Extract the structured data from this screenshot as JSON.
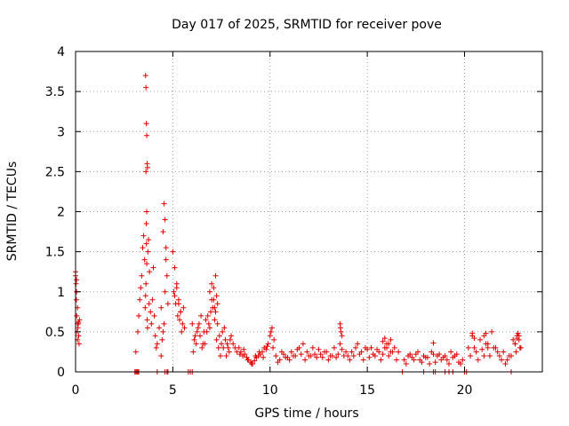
{
  "chart_data": {
    "type": "scatter",
    "title": "Day 017 of 2025, SRMTID for receiver pove",
    "xlabel": "GPS time / hours",
    "ylabel": "SRMTID / TECUs",
    "xlim": [
      0,
      24
    ],
    "ylim": [
      0,
      4
    ],
    "xticks": [
      0,
      5,
      10,
      15,
      20
    ],
    "yticks": [
      0,
      0.5,
      1,
      1.5,
      2,
      2.5,
      3,
      3.5,
      4
    ],
    "xtick_labels": [
      "0",
      "5",
      "10",
      "15",
      "20"
    ],
    "ytick_labels": [
      "0",
      "0.5",
      "1",
      "1.5",
      "2",
      "2.5",
      "3",
      "3.5",
      "4"
    ],
    "grid": true,
    "marker": "+",
    "color": "#dd0000",
    "series": [
      {
        "name": "SRMTID",
        "x": [
          0.0,
          0.02,
          0.04,
          0.06,
          0.08,
          0.1,
          0.12,
          0.14,
          0.16,
          0.18,
          0.0,
          0.05,
          0.1,
          0.15,
          0.05,
          0.1,
          0.2,
          3.1,
          3.2,
          3.25,
          3.3,
          3.35,
          3.4,
          3.45,
          3.5,
          3.55,
          3.58,
          3.6,
          3.62,
          3.64,
          3.66,
          3.68,
          3.7,
          3.72,
          3.75,
          3.78,
          3.8,
          3.85,
          3.9,
          3.95,
          4.0,
          4.05,
          4.1,
          4.15,
          4.2,
          4.3,
          4.4,
          4.5,
          4.55,
          4.6,
          4.65,
          4.7,
          4.75,
          3.6,
          3.62,
          3.64,
          3.66,
          3.68,
          3.7,
          3.66,
          3.64,
          3.62,
          4.4,
          4.45,
          4.5,
          4.55,
          4.6,
          4.65,
          5.0,
          5.1,
          5.2,
          5.3,
          5.4,
          5.5,
          5.6,
          5.05,
          5.15,
          5.25,
          5.35,
          5.45,
          5.55,
          5.1,
          5.2,
          5.3,
          5.4,
          6.0,
          6.1,
          6.2,
          6.3,
          6.4,
          6.5,
          6.6,
          6.7,
          6.8,
          6.9,
          7.0,
          7.1,
          7.2,
          7.3,
          7.4,
          7.5,
          7.6,
          7.7,
          7.8,
          7.9,
          8.0,
          8.1,
          8.2,
          8.3,
          6.05,
          6.25,
          6.45,
          6.65,
          6.85,
          7.05,
          7.25,
          7.45,
          7.65,
          7.85,
          6.15,
          6.35,
          6.55,
          6.75,
          6.95,
          7.15,
          7.35,
          7.55,
          7.75,
          7.95,
          6.9,
          7.0,
          7.1,
          7.2,
          7.3,
          7.15,
          7.25,
          8.4,
          8.5,
          8.6,
          8.7,
          8.8,
          8.9,
          9.0,
          9.1,
          9.2,
          9.3,
          9.4,
          9.5,
          9.6,
          9.7,
          9.8,
          9.9,
          10.0,
          10.1,
          10.2,
          8.45,
          8.65,
          8.85,
          9.05,
          9.25,
          9.45,
          9.65,
          9.85,
          10.05,
          10.15,
          10.3,
          10.5,
          10.7,
          10.9,
          11.1,
          11.3,
          11.5,
          11.7,
          11.9,
          12.1,
          12.3,
          12.5,
          12.7,
          12.9,
          13.1,
          13.3,
          13.5,
          13.7,
          13.9,
          10.4,
          10.6,
          10.8,
          11.0,
          11.2,
          11.4,
          11.6,
          11.8,
          12.0,
          12.2,
          12.4,
          12.6,
          12.8,
          13.0,
          13.2,
          13.4,
          13.6,
          13.8,
          13.6,
          13.65,
          13.7,
          13.62,
          14.0,
          14.2,
          14.4,
          14.6,
          14.8,
          15.0,
          15.2,
          15.4,
          15.6,
          15.8,
          16.0,
          16.2,
          16.4,
          16.6,
          14.1,
          14.3,
          14.5,
          14.7,
          14.9,
          15.1,
          15.3,
          15.5,
          15.7,
          15.9,
          16.1,
          16.3,
          16.5,
          15.8,
          15.9,
          16.0,
          16.1,
          16.2,
          16.9,
          17.1,
          17.3,
          17.5,
          17.7,
          17.9,
          18.1,
          18.3,
          18.5,
          18.7,
          18.9,
          19.1,
          19.3,
          19.5,
          19.7,
          19.9,
          17.0,
          17.2,
          17.4,
          17.6,
          17.8,
          18.0,
          18.2,
          18.4,
          18.6,
          18.8,
          19.0,
          19.2,
          19.4,
          19.6,
          19.8,
          18.4,
          20.2,
          20.4,
          20.6,
          20.8,
          21.0,
          21.2,
          21.4,
          21.6,
          21.8,
          22.0,
          22.2,
          22.4,
          22.6,
          22.8,
          20.3,
          20.5,
          20.7,
          20.9,
          21.1,
          21.3,
          21.5,
          21.7,
          21.9,
          22.1,
          22.3,
          22.5,
          22.7,
          20.4,
          20.5,
          21.0,
          21.1,
          21.2,
          22.6,
          22.7,
          22.8,
          22.9,
          22.65,
          22.75,
          22.85,
          3.05,
          3.1,
          3.15,
          3.2,
          3.25,
          4.2,
          4.6,
          4.7,
          4.75,
          5.8,
          5.9,
          6.0,
          16.8,
          17.9,
          18.4,
          18.5,
          19.0,
          19.2,
          19.4,
          20.0,
          20.1,
          22.4
        ],
        "y": [
          1.2,
          1.1,
          0.9,
          0.7,
          0.5,
          0.4,
          0.55,
          0.6,
          0.45,
          0.35,
          1.25,
          1.0,
          0.8,
          0.62,
          1.15,
          0.6,
          0.65,
          0.25,
          0.5,
          0.7,
          0.9,
          1.05,
          1.2,
          1.55,
          1.7,
          1.4,
          0.8,
          0.95,
          1.1,
          1.6,
          1.35,
          0.65,
          0.55,
          1.5,
          1.65,
          0.85,
          1.25,
          0.75,
          0.6,
          0.9,
          1.3,
          0.7,
          0.45,
          0.3,
          0.35,
          0.55,
          0.8,
          1.75,
          2.1,
          1.9,
          1.55,
          1.2,
          0.85,
          3.7,
          3.55,
          3.1,
          2.95,
          2.6,
          2.55,
          2.0,
          1.85,
          2.5,
          0.2,
          0.4,
          0.5,
          0.6,
          1.0,
          1.4,
          1.5,
          1.3,
          1.1,
          0.9,
          0.75,
          0.6,
          0.55,
          1.0,
          0.85,
          0.7,
          0.65,
          0.5,
          0.8,
          0.95,
          1.05,
          0.85,
          0.75,
          0.6,
          0.4,
          0.35,
          0.55,
          0.45,
          0.3,
          0.5,
          0.65,
          0.7,
          0.55,
          0.9,
          1.05,
          0.75,
          0.6,
          0.45,
          0.35,
          0.3,
          0.4,
          0.35,
          0.25,
          0.45,
          0.35,
          0.3,
          0.25,
          0.25,
          0.5,
          0.7,
          0.35,
          0.6,
          0.8,
          0.4,
          0.2,
          0.55,
          0.3,
          0.45,
          0.6,
          0.35,
          0.5,
          0.75,
          0.65,
          0.3,
          0.5,
          0.2,
          0.4,
          1.0,
          1.1,
          0.9,
          1.2,
          0.85,
          0.8,
          0.95,
          0.3,
          0.25,
          0.2,
          0.22,
          0.18,
          0.15,
          0.12,
          0.1,
          0.14,
          0.18,
          0.2,
          0.22,
          0.25,
          0.3,
          0.28,
          0.35,
          0.45,
          0.55,
          0.4,
          0.22,
          0.28,
          0.15,
          0.1,
          0.2,
          0.25,
          0.18,
          0.32,
          0.5,
          0.3,
          0.2,
          0.15,
          0.22,
          0.18,
          0.25,
          0.2,
          0.3,
          0.35,
          0.25,
          0.2,
          0.22,
          0.28,
          0.18,
          0.25,
          0.2,
          0.3,
          0.22,
          0.28,
          0.25,
          0.12,
          0.25,
          0.18,
          0.15,
          0.2,
          0.28,
          0.22,
          0.15,
          0.2,
          0.3,
          0.18,
          0.22,
          0.25,
          0.15,
          0.2,
          0.18,
          0.35,
          0.2,
          0.6,
          0.5,
          0.45,
          0.55,
          0.2,
          0.25,
          0.3,
          0.22,
          0.15,
          0.28,
          0.3,
          0.2,
          0.25,
          0.22,
          0.35,
          0.4,
          0.3,
          0.25,
          0.15,
          0.2,
          0.35,
          0.25,
          0.3,
          0.18,
          0.22,
          0.28,
          0.15,
          0.3,
          0.2,
          0.25,
          0.15,
          0.38,
          0.42,
          0.3,
          0.35,
          0.25,
          0.15,
          0.2,
          0.18,
          0.22,
          0.15,
          0.2,
          0.18,
          0.25,
          0.12,
          0.22,
          0.18,
          0.15,
          0.25,
          0.2,
          0.12,
          0.15,
          0.1,
          0.22,
          0.15,
          0.25,
          0.12,
          0.18,
          0.1,
          0.22,
          0.2,
          0.15,
          0.2,
          0.1,
          0.18,
          0.22,
          0.1,
          0.36,
          0.3,
          0.45,
          0.25,
          0.4,
          0.2,
          0.35,
          0.5,
          0.3,
          0.2,
          0.25,
          0.15,
          0.2,
          0.35,
          0.45,
          0.2,
          0.3,
          0.15,
          0.28,
          0.35,
          0.2,
          0.3,
          0.25,
          0.15,
          0.1,
          0.2,
          0.4,
          0.42,
          0.48,
          0.42,
          0.45,
          0.48,
          0.3,
          0.35,
          0.45,
          0.4,
          0.3,
          0.25,
          0.48,
          0.3,
          0.0,
          0.0,
          0.0,
          0.0,
          0.0,
          0.0,
          0.0,
          0.0,
          0.0,
          0.0,
          0.0,
          0.0,
          0.0,
          0.0,
          0.0,
          0.0,
          0.0,
          0.0,
          0.0,
          0.0,
          0.0,
          0.0
        ]
      }
    ]
  }
}
